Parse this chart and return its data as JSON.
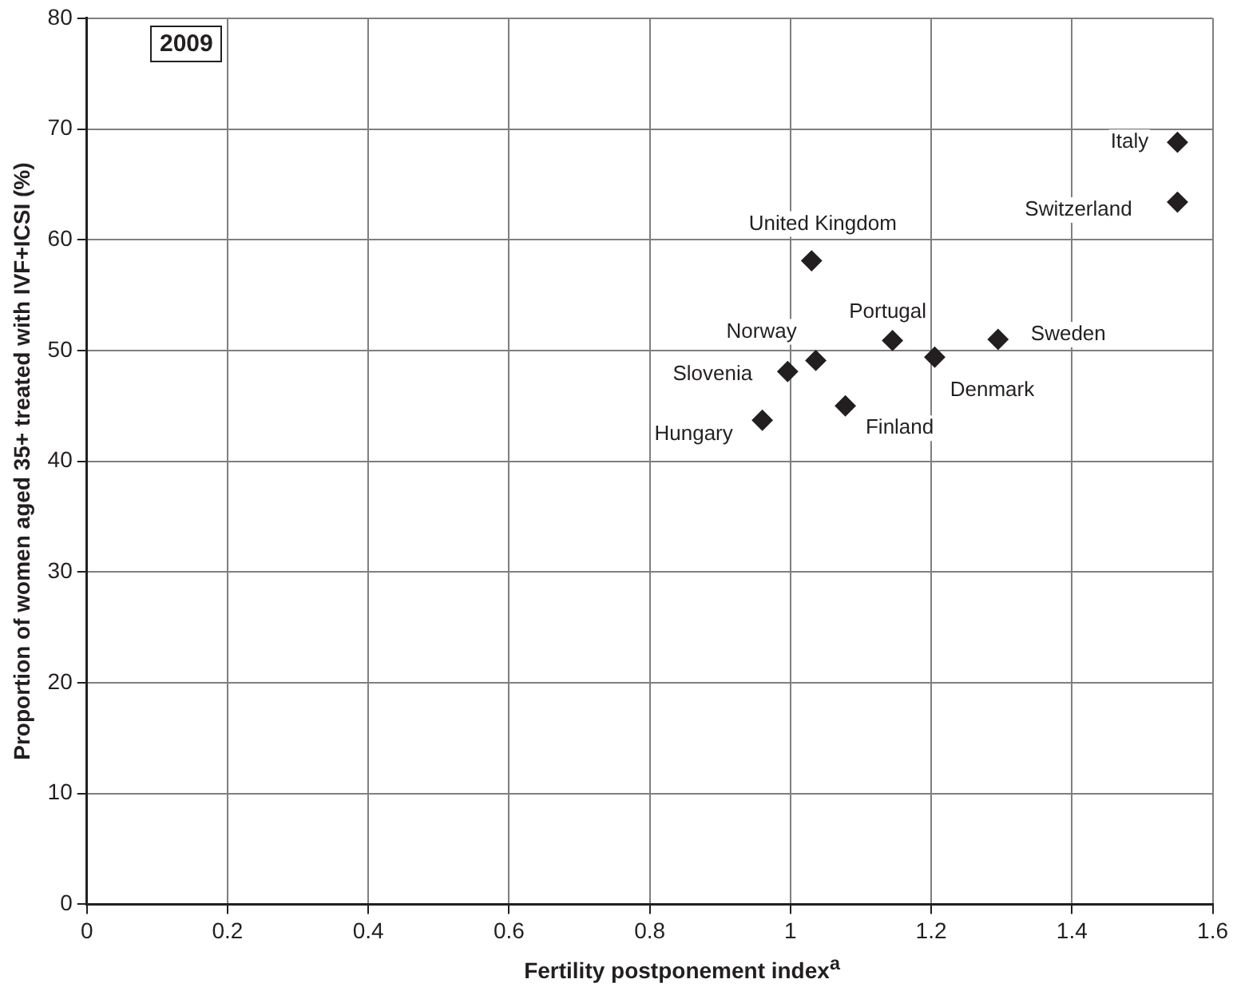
{
  "chart_data": {
    "type": "scatter",
    "title": "2009",
    "xlabel": "Fertility postponement index$^{a}$",
    "ylabel": "Proportion of women aged 35+ treated with IVF+ICSI (%)",
    "x": [
      1.55,
      1.55,
      1.03,
      1.145,
      1.295,
      1.036,
      1.205,
      0.996,
      1.078,
      0.96
    ],
    "series": [
      {
        "color": "#231f20",
        "values": [
          68.8,
          63.4,
          58.1,
          50.9,
          51.0,
          49.1,
          49.4,
          48.1,
          45.0,
          43.7
        ]
      }
    ],
    "annotations": [
      {
        "text": "Italy",
        "x": 1.55,
        "y": 68.8
      },
      {
        "text": "Switzerland",
        "x": 1.55,
        "y": 63.4
      },
      {
        "text": "United Kingdom",
        "x": 1.03,
        "y": 58.1
      },
      {
        "text": "Portugal",
        "x": 1.145,
        "y": 50.9
      },
      {
        "text": "Sweden",
        "x": 1.295,
        "y": 51.0
      },
      {
        "text": "Norway",
        "x": 1.036,
        "y": 49.1
      },
      {
        "text": "Denmark",
        "x": 1.205,
        "y": 49.4
      },
      {
        "text": "Slovenia",
        "x": 0.996,
        "y": 48.1
      },
      {
        "text": "Finland",
        "x": 1.078,
        "y": 45.0
      },
      {
        "text": "Hungary",
        "x": 0.96,
        "y": 43.7
      }
    ],
    "xlim": [
      0,
      1.6
    ],
    "xticks": [
      0,
      {
        "value": 0.2,
        "label": "0.2"
      },
      {
        "value": 0.4,
        "label": "0.4"
      },
      {
        "value": 0.6,
        "label": "0.6"
      },
      {
        "value": 0.8,
        "label": "0.8"
      },
      1,
      {
        "value": 1.2,
        "label": "1.2"
      },
      {
        "value": 1.4,
        "label": "1.4"
      },
      {
        "value": 1.6,
        "label": "1.6"
      }
    ],
    "ylim": [
      0,
      80
    ],
    "yticks": [
      0,
      10,
      20,
      30,
      40,
      50,
      60,
      70,
      80
    ],
    "grid": true,
    "legend": false,
    "marker": "diamond"
  }
}
